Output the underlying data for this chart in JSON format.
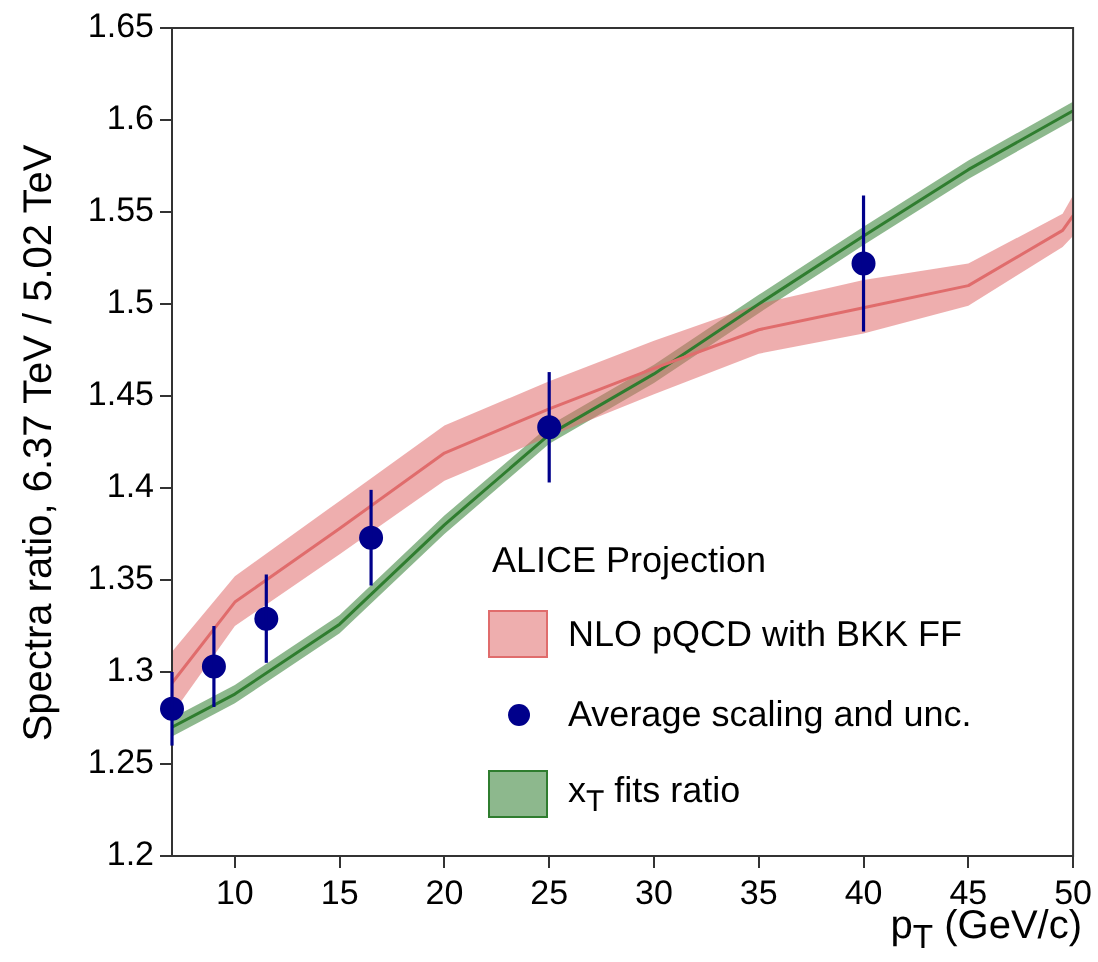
{
  "chart_data": {
    "type": "line",
    "xlabel": "p$_{T}$ (GeV/c)",
    "ylabel": "Spectra ratio, 6.37 TeV / 5.02 TeV",
    "legend_title": "ALICE Projection",
    "xlim": [
      7,
      50
    ],
    "xticks": [
      10,
      15,
      20,
      25,
      30,
      35,
      40,
      45,
      50
    ],
    "ylim": [
      1.2,
      1.65
    ],
    "yticks": [
      1.2,
      1.25,
      1.3,
      1.35,
      1.4,
      1.45,
      1.5,
      1.55,
      1.6,
      1.65
    ],
    "grid": false,
    "legend": "bottom right",
    "series": [
      {
        "name": "NLO pQCD with BKK FF",
        "color": "#e06c6c",
        "x": [
          7,
          10,
          15,
          20,
          25,
          30,
          35,
          40,
          45,
          49.5,
          50
        ],
        "values": [
          1.294,
          1.338,
          1.378,
          1.419,
          1.443,
          1.465,
          1.486,
          1.498,
          1.51,
          1.54,
          1.548
        ],
        "lower": [
          1.277,
          1.325,
          1.364,
          1.404,
          1.428,
          1.451,
          1.473,
          1.484,
          1.499,
          1.531,
          1.537
        ],
        "upper": [
          1.311,
          1.352,
          1.393,
          1.434,
          1.458,
          1.48,
          1.5,
          1.513,
          1.522,
          1.549,
          1.559
        ]
      },
      {
        "name": "Average scaling and unc.",
        "type": "scatter",
        "color": "#00008b",
        "marker": "circle",
        "x": [
          7,
          9,
          11.5,
          16.5,
          25,
          40
        ],
        "values": [
          1.28,
          1.303,
          1.329,
          1.373,
          1.433,
          1.522
        ],
        "errors": [
          0.02,
          0.022,
          0.024,
          0.026,
          0.03,
          0.037
        ]
      },
      {
        "name": "x$_{T}$ fits ratio",
        "color": "#2f7d2f",
        "x": [
          7,
          10,
          15,
          20,
          25,
          30,
          35,
          40,
          45,
          50
        ],
        "values": [
          1.27,
          1.288,
          1.326,
          1.38,
          1.429,
          1.462,
          1.5,
          1.537,
          1.573,
          1.605
        ],
        "lower": [
          1.265,
          1.283,
          1.321,
          1.375,
          1.424,
          1.457,
          1.495,
          1.532,
          1.568,
          1.6
        ],
        "upper": [
          1.275,
          1.293,
          1.331,
          1.385,
          1.434,
          1.467,
          1.505,
          1.542,
          1.578,
          1.61
        ]
      }
    ]
  }
}
